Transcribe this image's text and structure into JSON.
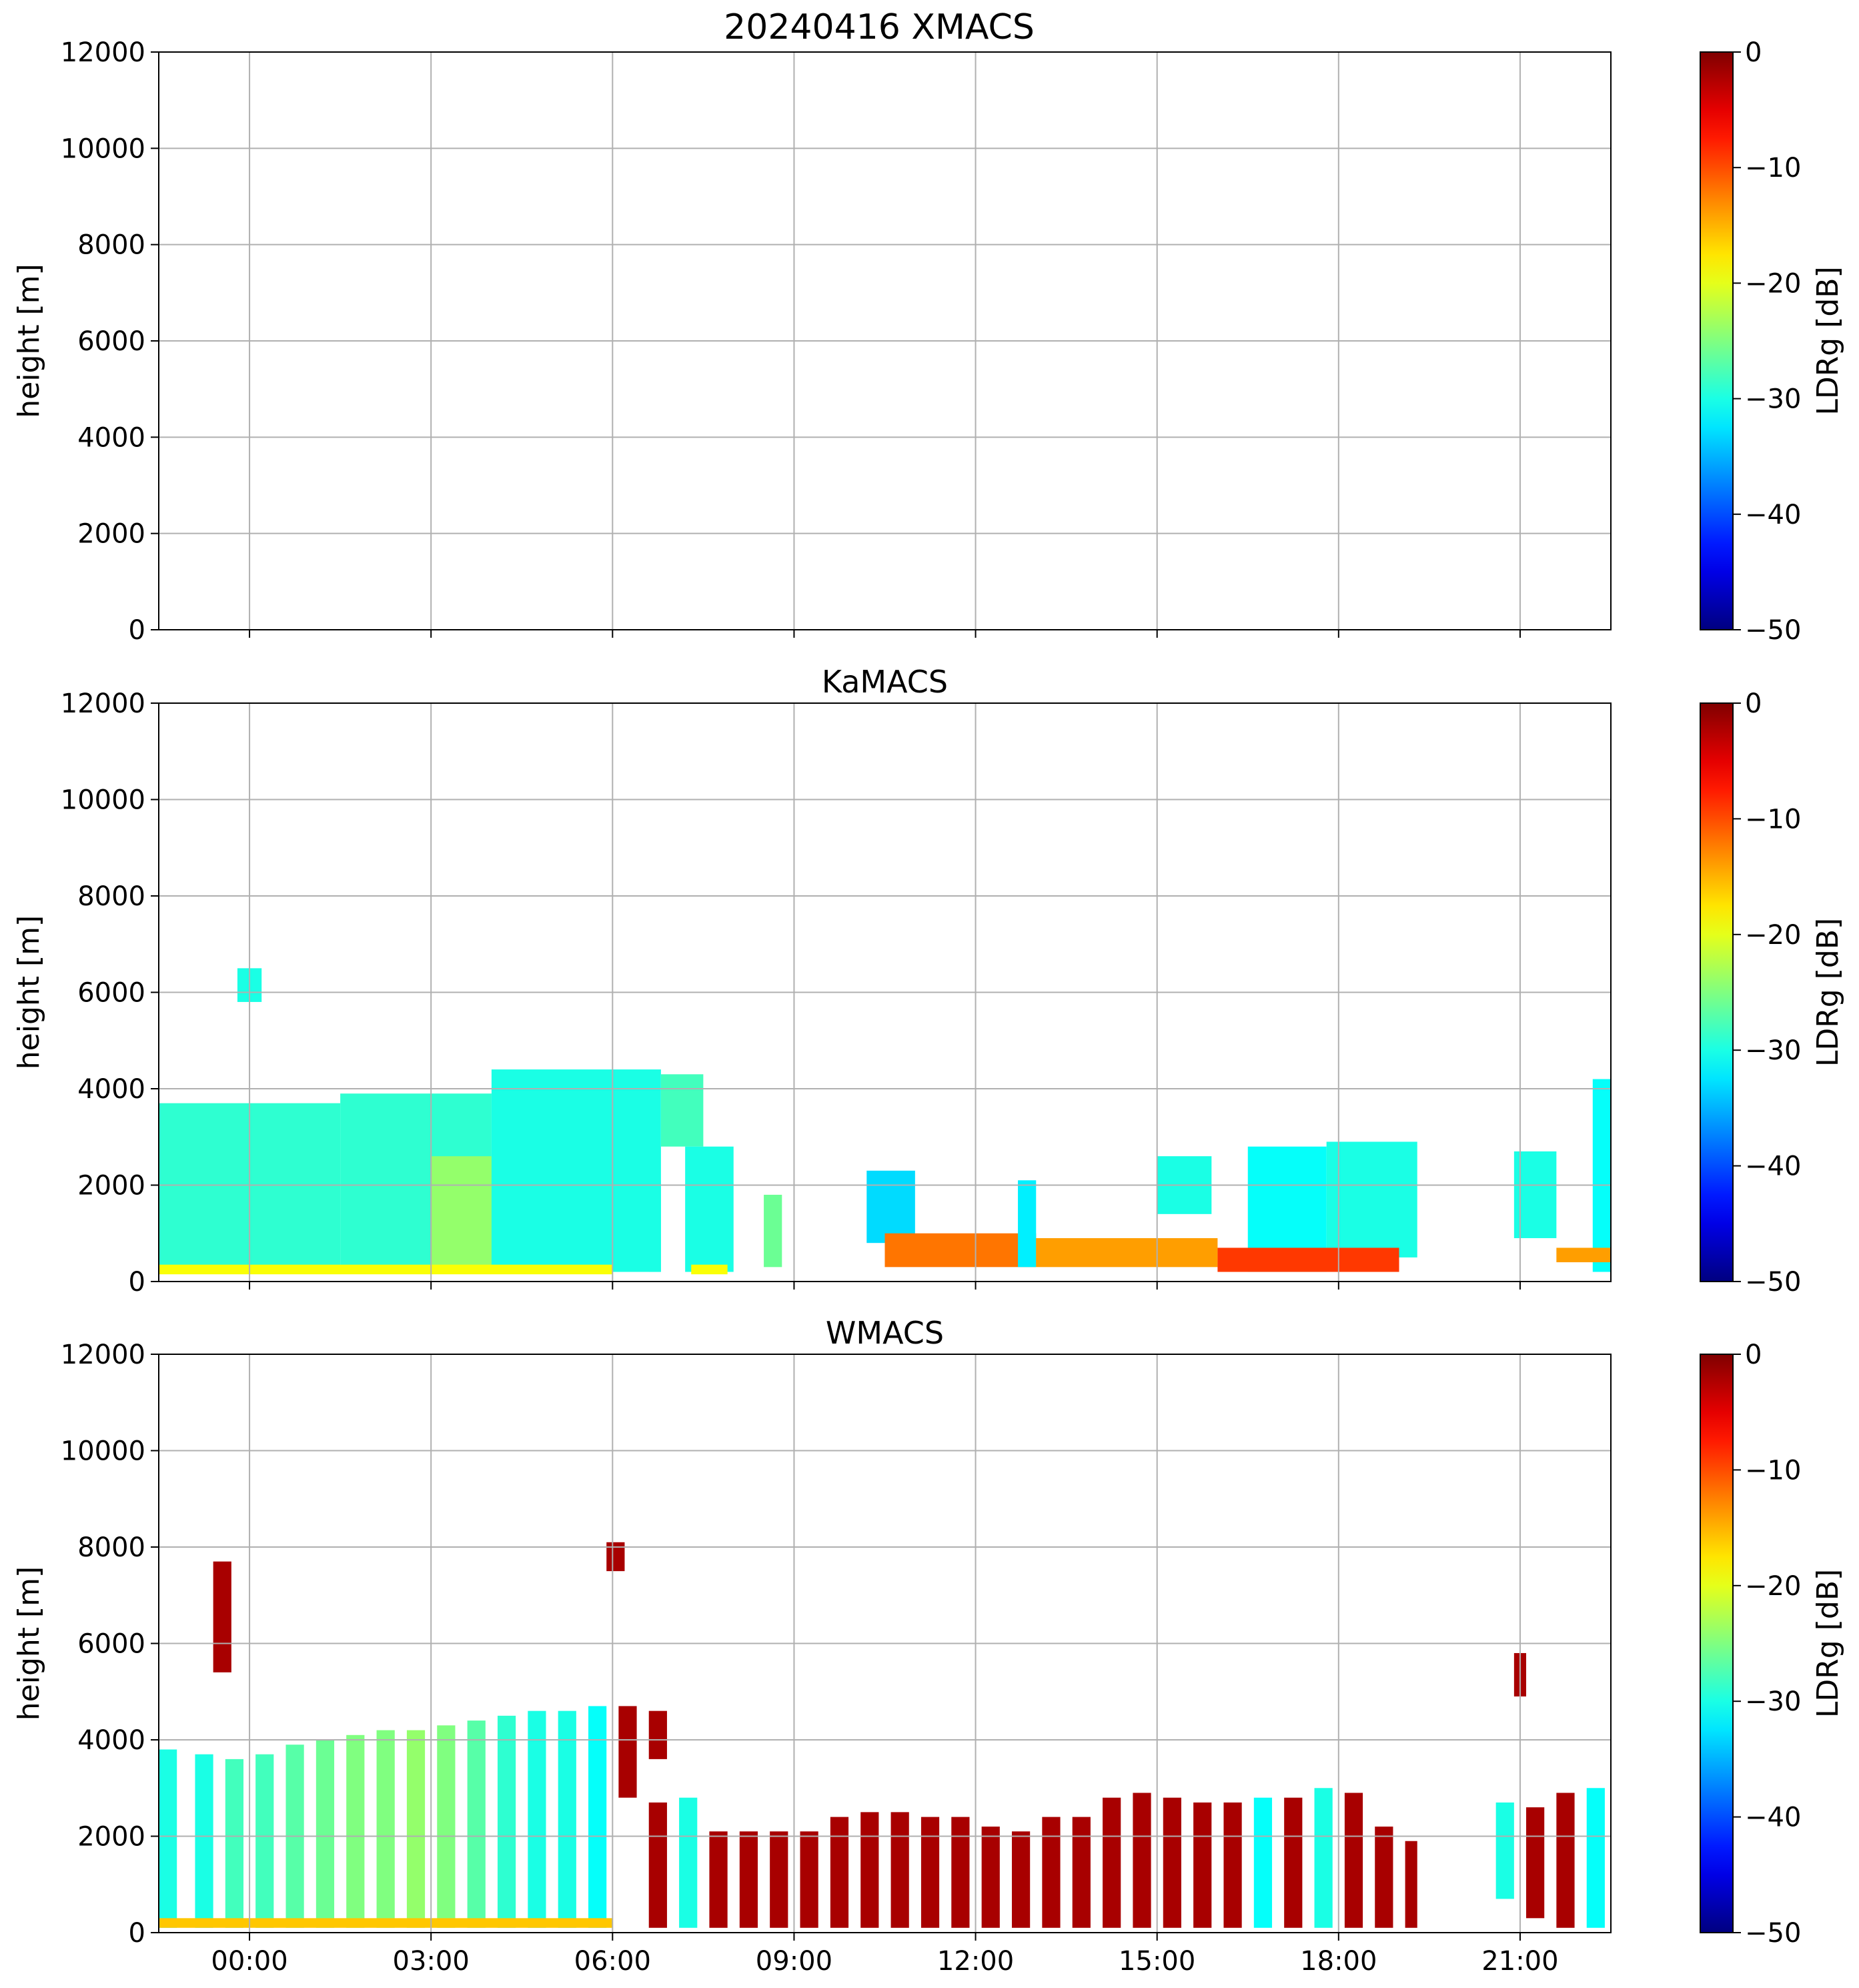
{
  "figure": {
    "title": "20240416 XMACS"
  },
  "chart_data": [
    {
      "type": "heatmap",
      "title": "20240416 XMACS",
      "xlabel": "",
      "ylabel": "height [m]",
      "xlim_hours": [
        -1.5,
        22.5
      ],
      "ylim": [
        0,
        12000
      ],
      "x_ticks": [
        "00:00",
        "03:00",
        "06:00",
        "09:00",
        "12:00",
        "15:00",
        "18:00",
        "21:00"
      ],
      "x_tick_hours": [
        0,
        3,
        6,
        9,
        12,
        15,
        18,
        21
      ],
      "x_tick_labels_visible": false,
      "y_ticks": [
        0,
        2000,
        4000,
        6000,
        8000,
        10000,
        12000
      ],
      "grid": true,
      "colorbar": {
        "label": "LDRg [dB]",
        "ticks": [
          0,
          -10,
          -20,
          -30,
          -40,
          -50
        ],
        "range": [
          -50,
          0
        ],
        "colormap": "jet"
      },
      "regions": []
    },
    {
      "type": "heatmap",
      "title": "KaMACS",
      "xlabel": "",
      "ylabel": "height [m]",
      "xlim_hours": [
        -1.5,
        22.5
      ],
      "ylim": [
        0,
        12000
      ],
      "x_ticks": [
        "00:00",
        "03:00",
        "06:00",
        "09:00",
        "12:00",
        "15:00",
        "18:00",
        "21:00"
      ],
      "x_tick_hours": [
        0,
        3,
        6,
        9,
        12,
        15,
        18,
        21
      ],
      "x_tick_labels_visible": false,
      "y_ticks": [
        0,
        2000,
        4000,
        6000,
        8000,
        10000,
        12000
      ],
      "grid": true,
      "colorbar": {
        "label": "LDRg [dB]",
        "ticks": [
          0,
          -10,
          -20,
          -30,
          -40,
          -50
        ],
        "range": [
          -50,
          0
        ],
        "colormap": "jet"
      },
      "regions": [
        {
          "t0": -1.5,
          "t1": 1.5,
          "h0": 200,
          "h1": 3700,
          "ldr": -29
        },
        {
          "t0": 1.5,
          "t1": 4.0,
          "h0": 200,
          "h1": 3900,
          "ldr": -29
        },
        {
          "t0": 3.0,
          "t1": 4.8,
          "h0": 200,
          "h1": 2600,
          "ldr": -24
        },
        {
          "t0": 4.0,
          "t1": 6.8,
          "h0": 200,
          "h1": 4400,
          "ldr": -30
        },
        {
          "t0": 6.8,
          "t1": 7.5,
          "h0": 2800,
          "h1": 4300,
          "ldr": -28
        },
        {
          "t0": -1.5,
          "t1": 6.0,
          "h0": 150,
          "h1": 350,
          "ldr": -19
        },
        {
          "t0": -0.2,
          "t1": 0.2,
          "h0": 5800,
          "h1": 6500,
          "ldr": -30
        },
        {
          "t0": 6.6,
          "t1": 6.8,
          "h0": 200,
          "h1": 2100,
          "ldr": -30
        },
        {
          "t0": 7.2,
          "t1": 8.0,
          "h0": 200,
          "h1": 2800,
          "ldr": -30
        },
        {
          "t0": 7.3,
          "t1": 7.9,
          "h0": 150,
          "h1": 350,
          "ldr": -19
        },
        {
          "t0": 8.5,
          "t1": 8.8,
          "h0": 300,
          "h1": 1800,
          "ldr": -26
        },
        {
          "t0": 10.2,
          "t1": 11.0,
          "h0": 800,
          "h1": 2300,
          "ldr": -33
        },
        {
          "t0": 10.5,
          "t1": 13.0,
          "h0": 300,
          "h1": 1000,
          "ldr": -12
        },
        {
          "t0": 12.7,
          "t1": 13.0,
          "h0": 300,
          "h1": 2100,
          "ldr": -32
        },
        {
          "t0": 13.0,
          "t1": 16.0,
          "h0": 300,
          "h1": 900,
          "ldr": -14
        },
        {
          "t0": 15.0,
          "t1": 15.9,
          "h0": 1400,
          "h1": 2600,
          "ldr": -30
        },
        {
          "t0": 16.5,
          "t1": 17.8,
          "h0": 200,
          "h1": 2800,
          "ldr": -31
        },
        {
          "t0": 17.8,
          "t1": 19.3,
          "h0": 500,
          "h1": 2900,
          "ldr": -30
        },
        {
          "t0": 16.0,
          "t1": 19.0,
          "h0": 200,
          "h1": 700,
          "ldr": -9
        },
        {
          "t0": 20.9,
          "t1": 21.6,
          "h0": 900,
          "h1": 2700,
          "ldr": -30
        },
        {
          "t0": 22.2,
          "t1": 22.5,
          "h0": 200,
          "h1": 4200,
          "ldr": -31
        },
        {
          "t0": 21.6,
          "t1": 22.5,
          "h0": 400,
          "h1": 700,
          "ldr": -14
        }
      ]
    },
    {
      "type": "heatmap",
      "title": "WMACS",
      "xlabel": "",
      "ylabel": "height [m]",
      "xlim_hours": [
        -1.5,
        22.5
      ],
      "ylim": [
        0,
        12000
      ],
      "x_ticks": [
        "00:00",
        "03:00",
        "06:00",
        "09:00",
        "12:00",
        "15:00",
        "18:00",
        "21:00"
      ],
      "x_tick_hours": [
        0,
        3,
        6,
        9,
        12,
        15,
        18,
        21
      ],
      "x_tick_labels_visible": true,
      "y_ticks": [
        0,
        2000,
        4000,
        6000,
        8000,
        10000,
        12000
      ],
      "grid": true,
      "colorbar": {
        "label": "LDRg [dB]",
        "ticks": [
          0,
          -10,
          -20,
          -30,
          -40,
          -50
        ],
        "range": [
          -50,
          0
        ],
        "colormap": "jet"
      },
      "regions": [
        {
          "t0": -1.5,
          "t1": -1.2,
          "h0": 100,
          "h1": 3800,
          "ldr": -30
        },
        {
          "t0": -0.9,
          "t1": -0.6,
          "h0": 100,
          "h1": 3700,
          "ldr": -30
        },
        {
          "t0": -0.4,
          "t1": -0.1,
          "h0": 100,
          "h1": 3600,
          "ldr": -28
        },
        {
          "t0": 0.1,
          "t1": 0.4,
          "h0": 100,
          "h1": 3700,
          "ldr": -28
        },
        {
          "t0": 0.6,
          "t1": 0.9,
          "h0": 100,
          "h1": 3900,
          "ldr": -27
        },
        {
          "t0": 1.1,
          "t1": 1.4,
          "h0": 100,
          "h1": 4000,
          "ldr": -26
        },
        {
          "t0": 1.6,
          "t1": 1.9,
          "h0": 100,
          "h1": 4100,
          "ldr": -25
        },
        {
          "t0": 2.1,
          "t1": 2.4,
          "h0": 100,
          "h1": 4200,
          "ldr": -25
        },
        {
          "t0": 2.6,
          "t1": 2.9,
          "h0": 100,
          "h1": 4200,
          "ldr": -24
        },
        {
          "t0": 3.1,
          "t1": 3.4,
          "h0": 100,
          "h1": 4300,
          "ldr": -25
        },
        {
          "t0": 3.6,
          "t1": 3.9,
          "h0": 100,
          "h1": 4400,
          "ldr": -27
        },
        {
          "t0": 4.1,
          "t1": 4.4,
          "h0": 100,
          "h1": 4500,
          "ldr": -29
        },
        {
          "t0": 4.6,
          "t1": 4.9,
          "h0": 100,
          "h1": 4600,
          "ldr": -30
        },
        {
          "t0": 5.1,
          "t1": 5.4,
          "h0": 100,
          "h1": 4600,
          "ldr": -30
        },
        {
          "t0": 5.6,
          "t1": 5.9,
          "h0": 100,
          "h1": 4700,
          "ldr": -31
        },
        {
          "t0": 6.1,
          "t1": 6.4,
          "h0": 2800,
          "h1": 4700,
          "ldr": -2
        },
        {
          "t0": 6.6,
          "t1": 6.9,
          "h0": 3600,
          "h1": 4600,
          "ldr": -2
        },
        {
          "t0": 6.6,
          "t1": 6.9,
          "h0": 100,
          "h1": 2700,
          "ldr": -2
        },
        {
          "t0": 7.1,
          "t1": 7.4,
          "h0": 100,
          "h1": 2800,
          "ldr": -30
        },
        {
          "t0": 7.6,
          "t1": 7.9,
          "h0": 100,
          "h1": 2100,
          "ldr": -2
        },
        {
          "t0": 8.1,
          "t1": 8.4,
          "h0": 100,
          "h1": 2100,
          "ldr": -2
        },
        {
          "t0": 8.6,
          "t1": 8.9,
          "h0": 100,
          "h1": 2100,
          "ldr": -2
        },
        {
          "t0": 9.1,
          "t1": 9.4,
          "h0": 100,
          "h1": 2100,
          "ldr": -2
        },
        {
          "t0": 9.6,
          "t1": 9.9,
          "h0": 100,
          "h1": 2400,
          "ldr": -2
        },
        {
          "t0": 10.1,
          "t1": 10.4,
          "h0": 100,
          "h1": 2500,
          "ldr": -2
        },
        {
          "t0": 10.6,
          "t1": 10.9,
          "h0": 100,
          "h1": 2500,
          "ldr": -2
        },
        {
          "t0": 11.1,
          "t1": 11.4,
          "h0": 100,
          "h1": 2400,
          "ldr": -2
        },
        {
          "t0": 11.6,
          "t1": 11.9,
          "h0": 100,
          "h1": 2400,
          "ldr": -2
        },
        {
          "t0": 12.1,
          "t1": 12.4,
          "h0": 100,
          "h1": 2200,
          "ldr": -2
        },
        {
          "t0": 12.6,
          "t1": 12.9,
          "h0": 100,
          "h1": 2100,
          "ldr": -2
        },
        {
          "t0": 13.1,
          "t1": 13.4,
          "h0": 100,
          "h1": 2400,
          "ldr": -2
        },
        {
          "t0": 13.6,
          "t1": 13.9,
          "h0": 100,
          "h1": 2400,
          "ldr": -2
        },
        {
          "t0": 14.1,
          "t1": 14.4,
          "h0": 100,
          "h1": 2800,
          "ldr": -2
        },
        {
          "t0": 14.6,
          "t1": 14.9,
          "h0": 100,
          "h1": 2900,
          "ldr": -2
        },
        {
          "t0": 15.1,
          "t1": 15.4,
          "h0": 100,
          "h1": 2800,
          "ldr": -2
        },
        {
          "t0": 15.6,
          "t1": 15.9,
          "h0": 100,
          "h1": 2700,
          "ldr": -2
        },
        {
          "t0": 16.1,
          "t1": 16.4,
          "h0": 100,
          "h1": 2700,
          "ldr": -2
        },
        {
          "t0": 16.6,
          "t1": 16.9,
          "h0": 100,
          "h1": 2800,
          "ldr": -31
        },
        {
          "t0": 17.1,
          "t1": 17.4,
          "h0": 100,
          "h1": 2800,
          "ldr": -2
        },
        {
          "t0": 17.6,
          "t1": 17.9,
          "h0": 100,
          "h1": 3000,
          "ldr": -30
        },
        {
          "t0": 18.1,
          "t1": 18.4,
          "h0": 100,
          "h1": 2900,
          "ldr": -2
        },
        {
          "t0": 18.6,
          "t1": 18.9,
          "h0": 100,
          "h1": 2200,
          "ldr": -2
        },
        {
          "t0": 19.1,
          "t1": 19.3,
          "h0": 100,
          "h1": 1900,
          "ldr": -2
        },
        {
          "t0": 20.6,
          "t1": 20.9,
          "h0": 700,
          "h1": 2700,
          "ldr": -30
        },
        {
          "t0": 21.1,
          "t1": 21.4,
          "h0": 300,
          "h1": 2600,
          "ldr": -2
        },
        {
          "t0": 21.6,
          "t1": 21.9,
          "h0": 100,
          "h1": 2900,
          "ldr": -2
        },
        {
          "t0": 22.1,
          "t1": 22.4,
          "h0": 100,
          "h1": 3000,
          "ldr": -31
        },
        {
          "t0": -1.5,
          "t1": 6.0,
          "h0": 100,
          "h1": 300,
          "ldr": -16
        },
        {
          "t0": 20.9,
          "t1": 21.1,
          "h0": 4900,
          "h1": 5800,
          "ldr": -2
        },
        {
          "t0": -0.6,
          "t1": -0.3,
          "h0": 5400,
          "h1": 7700,
          "ldr": -2
        },
        {
          "t0": 5.9,
          "t1": 6.2,
          "h0": 7500,
          "h1": 8100,
          "ldr": -2
        }
      ]
    }
  ]
}
